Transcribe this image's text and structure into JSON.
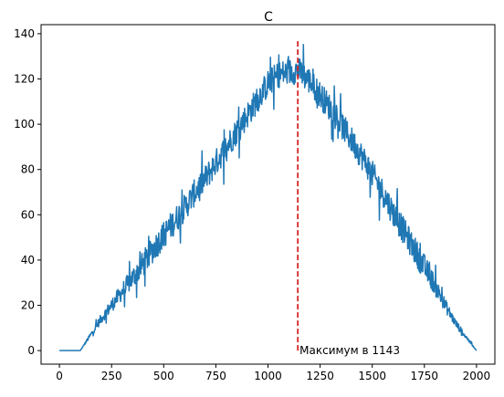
{
  "chart_data": {
    "type": "line",
    "title": "C",
    "xlabel": "",
    "ylabel": "",
    "xlim": [
      -88,
      2088
    ],
    "ylim": [
      -6,
      144
    ],
    "x_ticks": [
      0,
      250,
      500,
      750,
      1000,
      1250,
      1500,
      1750,
      2000
    ],
    "y_ticks": [
      0,
      20,
      40,
      60,
      80,
      100,
      120,
      140
    ],
    "grid": false,
    "series": [
      {
        "color": "#1f77b4",
        "x": [
          0,
          100,
          150,
          200,
          250,
          300,
          350,
          400,
          450,
          500,
          550,
          600,
          650,
          700,
          750,
          800,
          850,
          900,
          950,
          1000,
          1050,
          1100,
          1143,
          1200,
          1250,
          1300,
          1350,
          1400,
          1450,
          1500,
          1550,
          1600,
          1650,
          1700,
          1750,
          1800,
          1850,
          1900,
          1950,
          2000
        ],
        "y": [
          0,
          0,
          7,
          14,
          20,
          26,
          32,
          38,
          45,
          51,
          57,
          63,
          70,
          76,
          83,
          90,
          97,
          104,
          111,
          118,
          122,
          123,
          124,
          119,
          113,
          107,
          100,
          93,
          86,
          78,
          70,
          61,
          53,
          45,
          37,
          29,
          20,
          12,
          6,
          0
        ],
        "noise_amplitude": 6
      }
    ],
    "annotation": {
      "text": "Максимум в 1143",
      "x": 1143,
      "y_range": [
        0,
        137
      ],
      "line_color": "#d62728",
      "line_style": "dashed"
    }
  }
}
